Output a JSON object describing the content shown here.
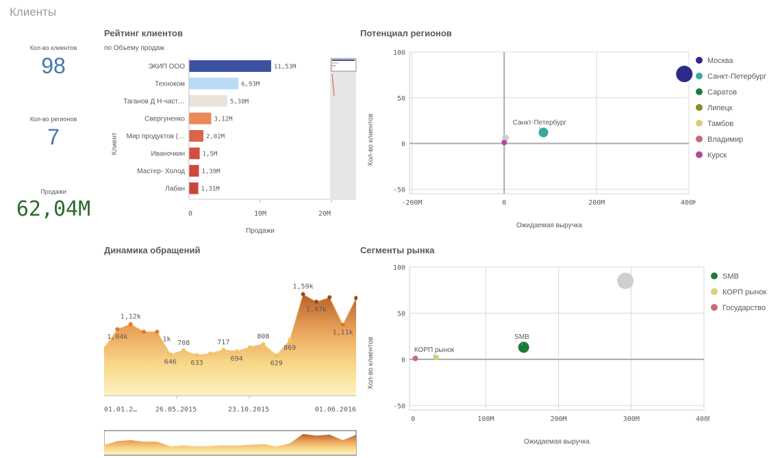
{
  "page": {
    "title": "Клиенты"
  },
  "kpis": [
    {
      "label": "Кол-во клиентов",
      "value": "98",
      "color": "#4477aa"
    },
    {
      "label": "Кол-во регионов",
      "value": "7",
      "color": "#4477aa"
    },
    {
      "label": "Продажи",
      "value": "62,04M",
      "color": "#2d6a2d"
    }
  ],
  "rating": {
    "title": "Рейтинг клиентов",
    "subtitle": "по Объему продаж",
    "ylabel": "Клиент",
    "xlabel": "Продажи",
    "ticks": [
      "0",
      "10M",
      "20M"
    ]
  },
  "potential": {
    "title": "Потенциал регионов",
    "xlabel": "Ожидаемая выручка",
    "ylabel": "Кол-во клиентов",
    "xticks": [
      "-200M",
      "0",
      "200M",
      "400M"
    ],
    "yticks": [
      "100",
      "50",
      "0",
      "-50"
    ],
    "legend": [
      {
        "name": "Москва",
        "color": "#2e2a8a"
      },
      {
        "name": "Санкт-Петербург",
        "color": "#3aa89a"
      },
      {
        "name": "Саратов",
        "color": "#1e7a3a"
      },
      {
        "name": "Липецк",
        "color": "#8a8a2a"
      },
      {
        "name": "Тамбов",
        "color": "#d9cf7a"
      },
      {
        "name": "Владимир",
        "color": "#c96a7a"
      },
      {
        "name": "Курск",
        "color": "#b04a9a"
      }
    ],
    "annotation": "Санкт-Петербург"
  },
  "dynamics": {
    "title": "Динамика обращений",
    "xticks": [
      "01.01.2…",
      "26.05.2015",
      "23.10.2015",
      "01.06.2016"
    ]
  },
  "segments": {
    "title": "Сегменты рынка",
    "xlabel": "Ожидаемая выручка",
    "ylabel": "Кол-во клиентов",
    "xticks": [
      "0",
      "100M",
      "200M",
      "300M",
      "400M"
    ],
    "yticks": [
      "100",
      "50",
      "0",
      "-50"
    ],
    "legend": [
      {
        "name": "SMB",
        "color": "#1e7a3a"
      },
      {
        "name": "КОРП рынок",
        "color": "#d9cf7a"
      },
      {
        "name": "Государство",
        "color": "#c96a7a"
      }
    ],
    "annotations": [
      "SMB",
      "КОРП рынок"
    ]
  },
  "chart_data": [
    {
      "type": "bar",
      "orientation": "horizontal",
      "title": "Рейтинг клиентов",
      "subtitle": "по Объему продаж",
      "xlabel": "Продажи",
      "ylabel": "Клиент",
      "xlim": [
        0,
        23
      ],
      "categories": [
        "ЭКИП ООО",
        "Техноком",
        "Таганов Д Н-част…",
        "Свергуненко",
        "Мир продуктов (…",
        "Иваночкин",
        "Мастер- Холод",
        "Лабан"
      ],
      "values": [
        11.53,
        6.93,
        5.38,
        3.12,
        2.02,
        1.5,
        1.39,
        1.31
      ],
      "labels": [
        "11,53M",
        "6,93M",
        "5,38M",
        "3,12M",
        "2,02M",
        "1,5M",
        "1,39M",
        "1,31M"
      ],
      "colors": [
        "#3b52a0",
        "#b8dcf5",
        "#e9e4dc",
        "#e88a5a",
        "#d9654b",
        "#d24e42",
        "#cf473d",
        "#cc433a"
      ]
    },
    {
      "type": "scatter",
      "title": "Потенциал регионов",
      "xlabel": "Ожидаемая выручка",
      "ylabel": "Кол-во клиентов",
      "xlim": [
        -205,
        400
      ],
      "ylim": [
        -55,
        100
      ],
      "points": [
        {
          "name": "Москва",
          "x": 390,
          "y": 76,
          "r": 12,
          "color": "#2e2a8a"
        },
        {
          "name": "Санкт-Петербург",
          "x": 85,
          "y": 12,
          "r": 7,
          "color": "#3aa89a"
        },
        {
          "name": "",
          "x": 3,
          "y": 6,
          "r": 5,
          "color": "#cfcfcf"
        },
        {
          "name": "Курск",
          "x": 0,
          "y": 1,
          "r": 4,
          "color": "#b04a9a"
        }
      ]
    },
    {
      "type": "area",
      "title": "Динамика обращений",
      "values": [
        740,
        1040,
        1120,
        1000,
        1000,
        646,
        708,
        633,
        660,
        717,
        694,
        760,
        808,
        629,
        869,
        1590,
        1470,
        1540,
        1110,
        1530
      ],
      "labels": {
        "1": "1,04k",
        "2": "1,12k",
        "4": "1k",
        "5": "646",
        "6": "708",
        "7": "633",
        "9": "717",
        "10": "694",
        "12": "808",
        "13": "629",
        "14": "869",
        "15": "1,59k",
        "16": "1,47k",
        "18": "1,11k"
      },
      "ylim": [
        0,
        1800
      ]
    },
    {
      "type": "scatter",
      "title": "Сегменты рынка",
      "xlabel": "Ожидаемая выручка",
      "ylabel": "Кол-во клиентов",
      "xlim": [
        -5,
        400
      ],
      "ylim": [
        -55,
        100
      ],
      "points": [
        {
          "name": "",
          "x": 292,
          "y": 85,
          "r": 12,
          "color": "#cfcfcf"
        },
        {
          "name": "SMB",
          "x": 152,
          "y": 13,
          "r": 8,
          "color": "#1e7a3a"
        },
        {
          "name": "КОРП рынок",
          "x": 32,
          "y": 2,
          "r": 4,
          "color": "#d9cf7a"
        },
        {
          "name": "Государство",
          "x": 3,
          "y": 1,
          "r": 4,
          "color": "#c96a7a"
        }
      ]
    }
  ]
}
